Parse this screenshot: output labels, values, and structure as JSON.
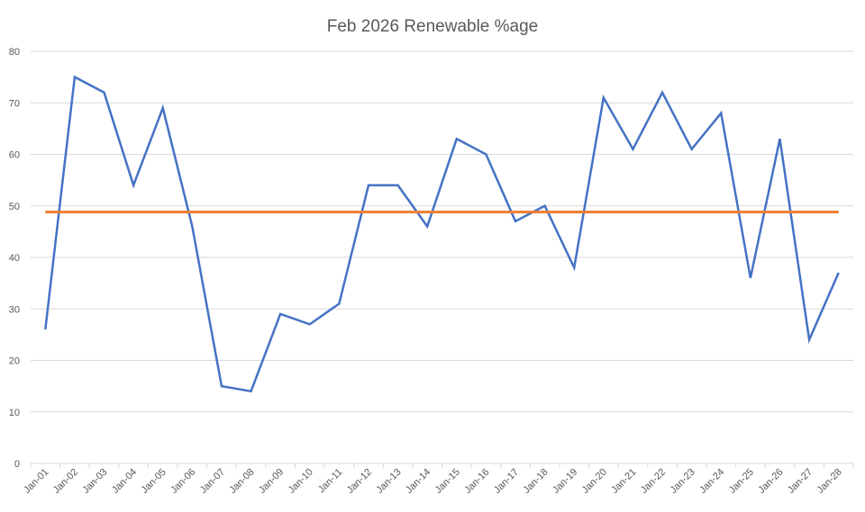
{
  "chart_data": {
    "type": "line",
    "title": "Feb 2026 Renewable %age",
    "xlabel": "",
    "ylabel": "",
    "ylim": [
      0,
      80
    ],
    "yticks": [
      0,
      10,
      20,
      30,
      40,
      50,
      60,
      70,
      80
    ],
    "grid": true,
    "legend": "none",
    "categories": [
      "Jan-01",
      "Jan-02",
      "Jan-03",
      "Jan-04",
      "Jan-05",
      "Jan-06",
      "Jan-07",
      "Jan-08",
      "Jan-09",
      "Jan-10",
      "Jan-11",
      "Jan-12",
      "Jan-13",
      "Jan-14",
      "Jan-15",
      "Jan-16",
      "Jan-17",
      "Jan-18",
      "Jan-19",
      "Jan-20",
      "Jan-21",
      "Jan-22",
      "Jan-23",
      "Jan-24",
      "Jan-25",
      "Jan-26",
      "Jan-27",
      "Jan-28"
    ],
    "series": [
      {
        "color": "#4472c4",
        "values": [
          26,
          75,
          72,
          54,
          69,
          46,
          15,
          14,
          29,
          27,
          31,
          54,
          54,
          46,
          63,
          60,
          47,
          50,
          38,
          71,
          61,
          72,
          61,
          68,
          36,
          63,
          24,
          37
        ]
      },
      {
        "color": "#ed7d31",
        "values": [
          48.8,
          48.8,
          48.8,
          48.8,
          48.8,
          48.8,
          48.8,
          48.8,
          48.8,
          48.8,
          48.8,
          48.8,
          48.8,
          48.8,
          48.8,
          48.8,
          48.8,
          48.8,
          48.8,
          48.8,
          48.8,
          48.8,
          48.8,
          48.8,
          48.8,
          48.8,
          48.8,
          48.8
        ]
      }
    ]
  }
}
